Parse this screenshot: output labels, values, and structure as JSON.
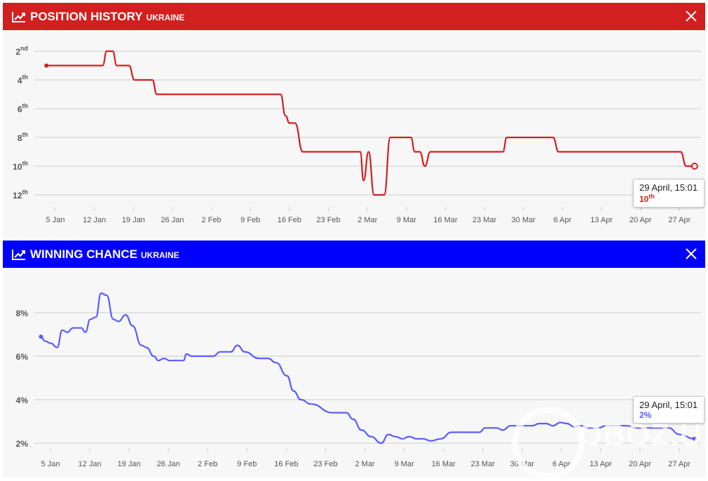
{
  "panels": [
    {
      "title": "POSITION HISTORY",
      "subtitle": "UKRAINE",
      "color": "#d21f1f",
      "tooltip": {
        "date": "29 April, 15:01",
        "value": "10",
        "suffix": "th"
      }
    },
    {
      "title": "WINNING CHANCE",
      "subtitle": "UKRAINE",
      "color": "#0000ff",
      "tooltip": {
        "date": "29 April, 15:01",
        "value": "2%"
      }
    }
  ],
  "watermark": "OBOZ.UA",
  "chart_data": [
    {
      "type": "line",
      "title": "POSITION HISTORY UKRAINE",
      "xunit": "days since 5 Jan",
      "series_color": "#d21f1f",
      "yticks": [
        {
          "n": "2",
          "s": "nd"
        },
        {
          "n": "4",
          "s": "th"
        },
        {
          "n": "6",
          "s": "th"
        },
        {
          "n": "8",
          "s": "th"
        },
        {
          "n": "10",
          "s": "th"
        },
        {
          "n": "12",
          "s": "th"
        }
      ],
      "ylim": [
        2,
        12
      ],
      "inverted": true,
      "xticks": [
        "5 Jan",
        "12 Jan",
        "19 Jan",
        "26 Jan",
        "2 Feb",
        "9 Feb",
        "16 Feb",
        "23 Feb",
        "2 Mar",
        "9 Mar",
        "16 Mar",
        "23 Mar",
        "30 Mar",
        "6 Apr",
        "13 Apr",
        "20 Apr",
        "27 Apr"
      ],
      "points": [
        [
          -1.6,
          3
        ],
        [
          8.5,
          3
        ],
        [
          9.2,
          2
        ],
        [
          10.3,
          2
        ],
        [
          11,
          3
        ],
        [
          13.2,
          3
        ],
        [
          14.2,
          4
        ],
        [
          17.4,
          4
        ],
        [
          18.2,
          5
        ],
        [
          40.4,
          5
        ],
        [
          41.3,
          6.5
        ],
        [
          42,
          7
        ],
        [
          43,
          7
        ],
        [
          44.4,
          9
        ],
        [
          54.7,
          9
        ],
        [
          55.3,
          11
        ],
        [
          56.2,
          9
        ],
        [
          57.2,
          12
        ],
        [
          59,
          12
        ],
        [
          60.1,
          8
        ],
        [
          63.8,
          8
        ],
        [
          64.5,
          9
        ],
        [
          65.4,
          9
        ],
        [
          66.3,
          10
        ],
        [
          67.3,
          9
        ],
        [
          80.3,
          9
        ],
        [
          81,
          8
        ],
        [
          89.3,
          8
        ],
        [
          90.3,
          9
        ],
        [
          112.2,
          9
        ],
        [
          113.2,
          10
        ],
        [
          114.7,
          10
        ]
      ]
    },
    {
      "type": "line",
      "title": "WINNING CHANCE UKRAINE",
      "xunit": "days since 5 Jan",
      "series_color": "#5b5bff",
      "yticks": [
        "2%",
        "4%",
        "6%",
        "8%"
      ],
      "ytickvalues": [
        2,
        4,
        6,
        8
      ],
      "ylim": [
        2,
        8.9
      ],
      "xticks": [
        "5 Jan",
        "12 Jan",
        "19 Jan",
        "26 Jan",
        "2 Feb",
        "9 Feb",
        "16 Feb",
        "23 Feb",
        "2 Mar",
        "9 Mar",
        "16 Mar",
        "23 Mar",
        "30 Mar",
        "6 Apr",
        "13 Apr",
        "20 Apr",
        "27 Apr"
      ],
      "points": [
        [
          -1.7,
          6.9
        ],
        [
          -1,
          6.7
        ],
        [
          0,
          6.6
        ],
        [
          1.2,
          6.4
        ],
        [
          2.1,
          7.2
        ],
        [
          3,
          7.1
        ],
        [
          4,
          7.3
        ],
        [
          5.5,
          7.3
        ],
        [
          6.2,
          7.1
        ],
        [
          7.1,
          7.7
        ],
        [
          8.1,
          7.8
        ],
        [
          9,
          8.9
        ],
        [
          10,
          8.8
        ],
        [
          11.2,
          7.7
        ],
        [
          12.1,
          7.6
        ],
        [
          13.4,
          7.9
        ],
        [
          14.6,
          7.4
        ],
        [
          16.2,
          6.5
        ],
        [
          17.1,
          6.4
        ],
        [
          18.4,
          6.0
        ],
        [
          19.2,
          5.8
        ],
        [
          20.2,
          5.9
        ],
        [
          21.2,
          5.8
        ],
        [
          23.7,
          5.8
        ],
        [
          24.2,
          6.1
        ],
        [
          25.2,
          6.0
        ],
        [
          29,
          6.0
        ],
        [
          30.2,
          6.2
        ],
        [
          32.1,
          6.2
        ],
        [
          33.3,
          6.5
        ],
        [
          34.6,
          6.2
        ],
        [
          37.1,
          5.9
        ],
        [
          38.7,
          5.9
        ],
        [
          40.2,
          5.7
        ],
        [
          42.1,
          5.1
        ],
        [
          43.3,
          4.4
        ],
        [
          44.6,
          4.0
        ],
        [
          46.4,
          3.8
        ],
        [
          50.2,
          3.4
        ],
        [
          52.7,
          3.4
        ],
        [
          53.9,
          3.1
        ],
        [
          55.4,
          2.6
        ],
        [
          57.1,
          2.3
        ],
        [
          58.9,
          2.0
        ],
        [
          60.2,
          2.4
        ],
        [
          61.4,
          2.3
        ],
        [
          62.7,
          2.2
        ],
        [
          63.9,
          2.3
        ],
        [
          65.2,
          2.2
        ],
        [
          66.4,
          2.2
        ],
        [
          67.7,
          2.1
        ],
        [
          69.5,
          2.2
        ],
        [
          71.4,
          2.5
        ],
        [
          76.4,
          2.5
        ],
        [
          77.4,
          2.7
        ],
        [
          79.5,
          2.7
        ],
        [
          80.5,
          2.6
        ],
        [
          82,
          2.8
        ],
        [
          85.8,
          2.8
        ],
        [
          87,
          2.9
        ],
        [
          88.3,
          2.9
        ],
        [
          89.5,
          2.8
        ],
        [
          90.8,
          2.95
        ],
        [
          92,
          2.9
        ],
        [
          93.3,
          2.75
        ],
        [
          94.5,
          2.8
        ],
        [
          95.8,
          2.7
        ],
        [
          97.6,
          2.7
        ],
        [
          98.9,
          2.8
        ],
        [
          102.6,
          2.8
        ],
        [
          104.5,
          2.7
        ],
        [
          110.1,
          2.7
        ],
        [
          112,
          2.4
        ],
        [
          114.7,
          2.2
        ]
      ]
    }
  ]
}
